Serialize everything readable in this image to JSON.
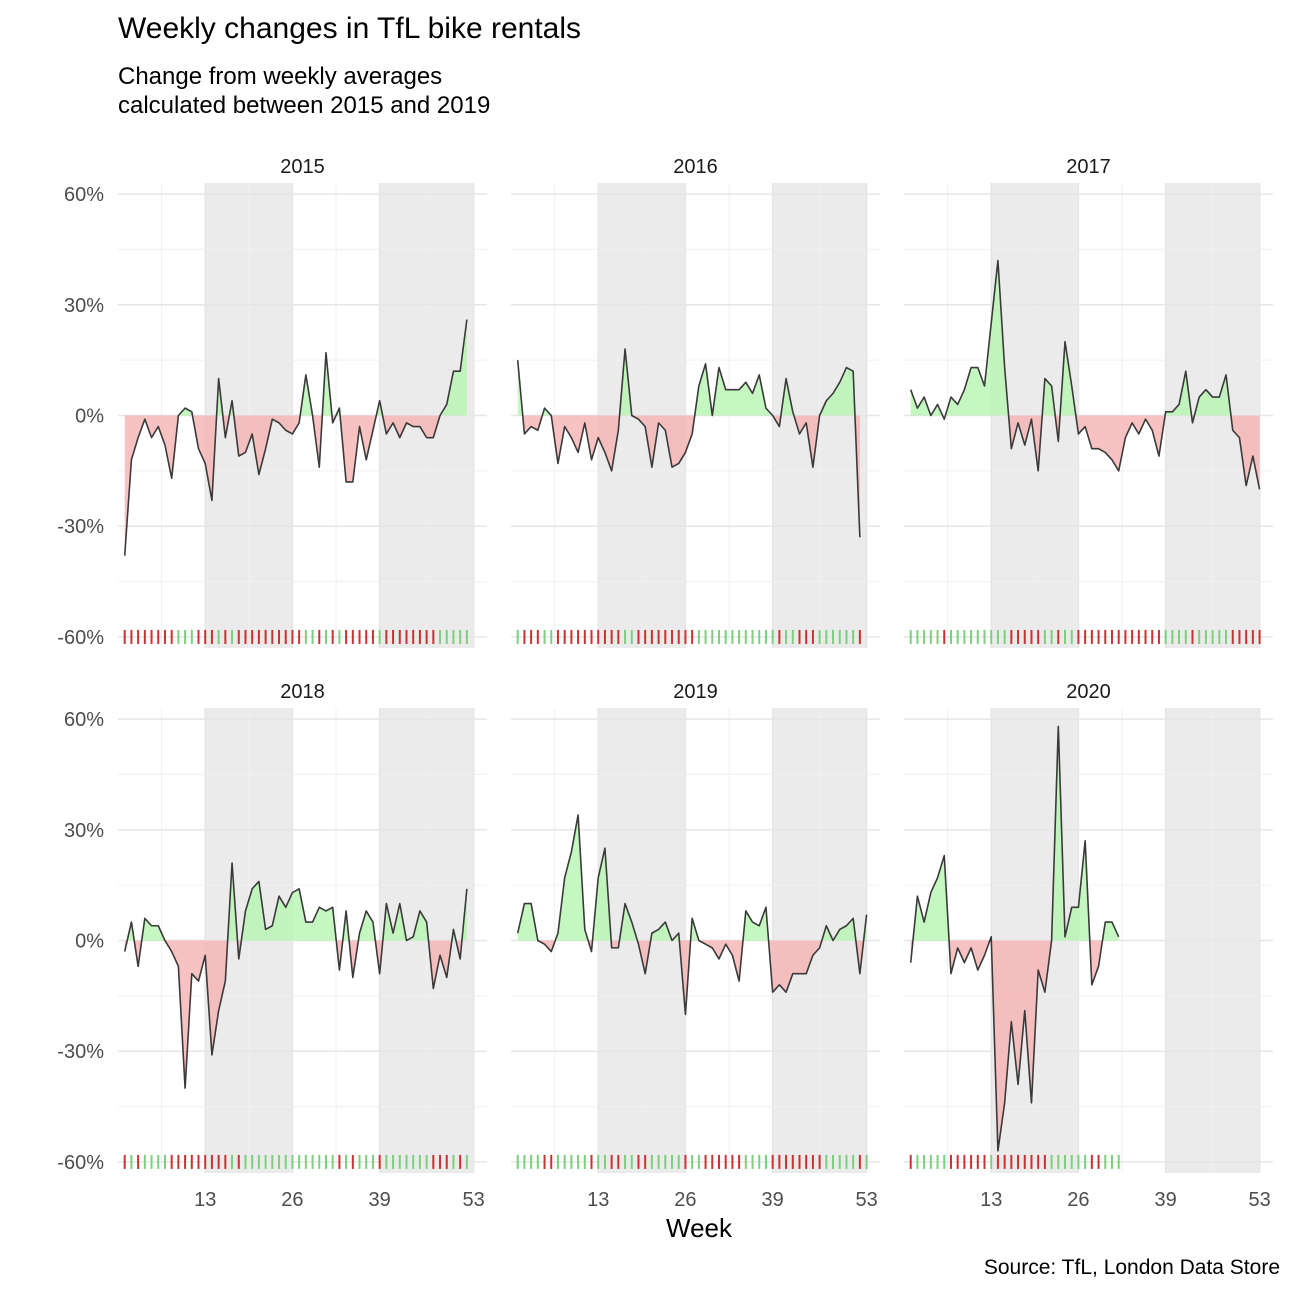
{
  "title": "Weekly changes in TfL bike rentals",
  "subtitle": [
    "Change from weekly averages",
    "calculated between 2015 and 2019"
  ],
  "caption": "Source: TfL, London Data Store",
  "colors": {
    "positive_fill": "#b6f5b0",
    "negative_fill": "#f7b3b3",
    "positive_tick": "#7ccf7c",
    "negative_tick": "#c83232",
    "line": "#3a3a3a",
    "shade": "#ebebeb",
    "grid": "#e6e6e6"
  },
  "chart_data": {
    "type": "area",
    "xlabel": "Week",
    "ylabel": "",
    "xlim": [
      0,
      55
    ],
    "ylim": [
      -63,
      63
    ],
    "x_ticks": [
      13,
      26,
      39,
      53
    ],
    "y_ticks": [
      -60,
      -30,
      0,
      30,
      60
    ],
    "y_tick_labels": [
      "-60%",
      "-30%",
      "0%",
      "30%",
      "60%"
    ],
    "shaded_week_ranges": [
      [
        13,
        26
      ],
      [
        39,
        53
      ]
    ],
    "panels": [
      {
        "year": "2015",
        "weeks_start": 1,
        "values": [
          -38,
          -12,
          -6,
          -1,
          -6,
          -3,
          -8,
          -17,
          0,
          2,
          1,
          -9,
          -13,
          -23,
          10,
          -6,
          4,
          -11,
          -10,
          -5,
          -16,
          -9,
          -1,
          -2,
          -4,
          -5,
          -2,
          11,
          0,
          -14,
          17,
          -2,
          2,
          -18,
          -18,
          -3,
          -12,
          -4,
          4,
          -5,
          -2,
          -6,
          -2,
          -3,
          -3,
          -6,
          -6,
          0,
          3,
          12,
          12,
          26
        ]
      },
      {
        "year": "2016",
        "weeks_start": 1,
        "values": [
          15,
          -5,
          -3,
          -4,
          2,
          0,
          -13,
          -3,
          -6,
          -10,
          -2,
          -12,
          -6,
          -10,
          -15,
          -4,
          18,
          0,
          -1,
          -3,
          -14,
          -2,
          -4,
          -14,
          -13,
          -10,
          -5,
          8,
          14,
          0,
          13,
          7,
          7,
          7,
          9,
          6,
          11,
          2,
          0,
          -3,
          10,
          1,
          -5,
          -2,
          -14,
          0,
          4,
          6,
          9,
          13,
          12,
          -33
        ]
      },
      {
        "year": "2017",
        "weeks_start": 1,
        "values": [
          7,
          2,
          5,
          0,
          3,
          -1,
          5,
          3,
          7,
          13,
          13,
          8,
          25,
          42,
          13,
          -9,
          -2,
          -8,
          -1,
          -15,
          10,
          8,
          -7,
          20,
          8,
          -5,
          -3,
          -9,
          -9,
          -10,
          -12,
          -15,
          -6,
          -2,
          -5,
          -1,
          -4,
          -11,
          1,
          1,
          3,
          12,
          -2,
          5,
          7,
          5,
          5,
          11,
          -4,
          -6,
          -19,
          -11,
          -20
        ]
      },
      {
        "year": "2018",
        "weeks_start": 1,
        "values": [
          -3,
          5,
          -7,
          6,
          4,
          4,
          0,
          -3,
          -7,
          -40,
          -9,
          -11,
          -4,
          -31,
          -19,
          -11,
          21,
          -5,
          8,
          14,
          16,
          3,
          4,
          12,
          9,
          13,
          14,
          5,
          5,
          9,
          8,
          9,
          -8,
          8,
          -10,
          2,
          8,
          5,
          -9,
          10,
          2,
          10,
          0,
          1,
          8,
          5,
          -13,
          -4,
          -10,
          3,
          -5,
          14
        ]
      },
      {
        "year": "2019",
        "weeks_start": 1,
        "values": [
          2,
          10,
          10,
          0,
          -1,
          -3,
          2,
          17,
          24,
          34,
          3,
          -3,
          17,
          25,
          -2,
          -2,
          10,
          5,
          -1,
          -9,
          2,
          3,
          5,
          0,
          2,
          -20,
          6,
          0,
          -1,
          -2,
          -5,
          -1,
          -4,
          -11,
          8,
          5,
          4,
          9,
          -14,
          -12,
          -14,
          -9,
          -9,
          -9,
          -4,
          -2,
          4,
          0,
          3,
          4,
          6,
          -9,
          7
        ]
      },
      {
        "year": "2020",
        "weeks_start": 1,
        "values": [
          -6,
          12,
          5,
          13,
          17,
          23,
          -9,
          -2,
          -6,
          -2,
          -8,
          -4,
          1,
          -57,
          -44,
          -22,
          -39,
          -19,
          -44,
          -8,
          -14,
          0,
          58,
          1,
          9,
          9,
          27,
          -12,
          -7,
          5,
          5,
          1
        ]
      }
    ]
  }
}
